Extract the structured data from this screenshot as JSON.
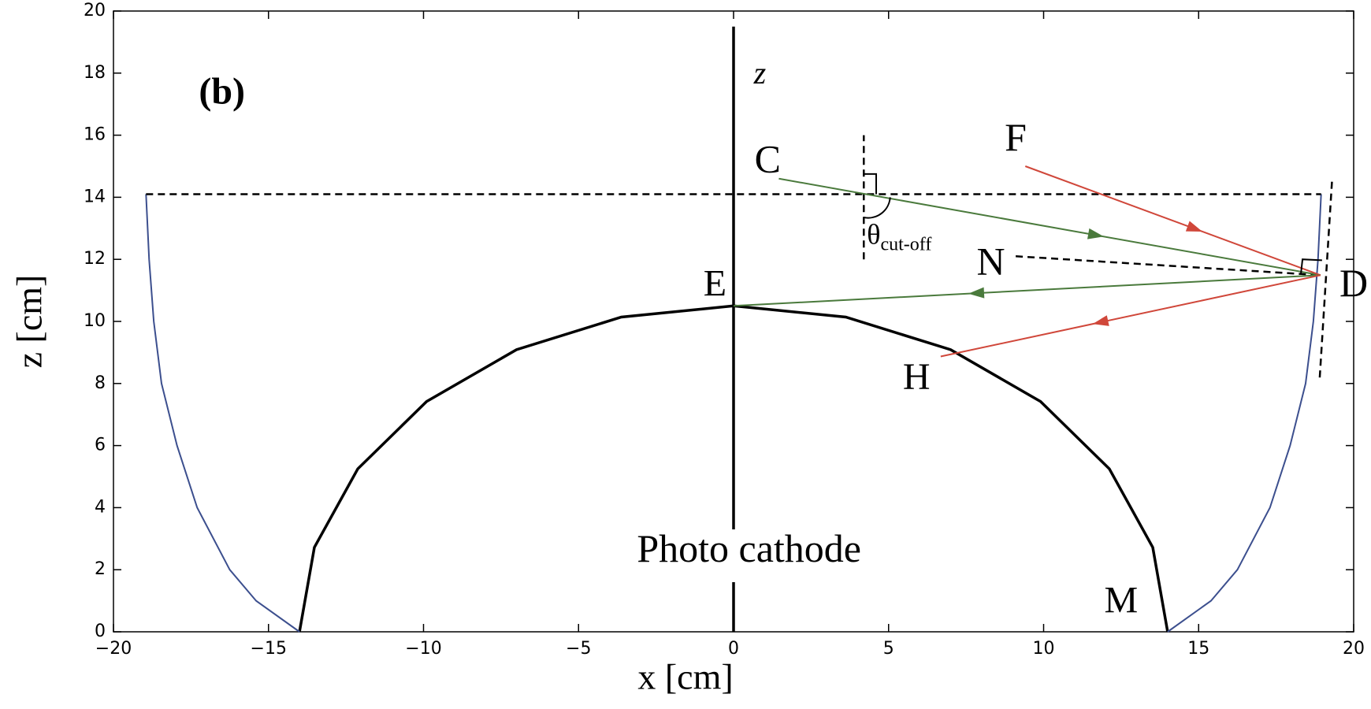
{
  "chart_data": {
    "type": "line",
    "title": "(b)",
    "xlabel": "x [cm]",
    "ylabel": "z [cm]",
    "xlim": [
      -20,
      20
    ],
    "ylim": [
      0,
      20
    ],
    "xticks": [
      {
        "value": -20,
        "label": "−20"
      },
      {
        "value": -15,
        "label": "−15"
      },
      {
        "value": -10,
        "label": "−10"
      },
      {
        "value": -5,
        "label": "−5"
      },
      0,
      5,
      10,
      15,
      20
    ],
    "yticks": [
      0,
      2,
      4,
      6,
      8,
      10,
      12,
      14,
      16,
      18,
      20
    ],
    "grid": false,
    "series": [
      {
        "color": "#000000",
        "dashed": false,
        "x": [
          -14,
          -13.52,
          -12.12,
          -9.9,
          -7,
          -3.62,
          0,
          3.62,
          7,
          9.9,
          12.12,
          13.52,
          14
        ],
        "y": [
          0,
          2.72,
          5.25,
          7.42,
          9.09,
          10.14,
          10.5,
          10.14,
          9.09,
          7.42,
          5.25,
          2.72,
          0
        ]
      },
      {
        "color": "#3c4f8e",
        "dashed": false,
        "x": [
          14,
          15.4,
          16.25,
          17.3,
          17.95,
          18.45,
          18.7,
          18.85,
          18.95
        ],
        "y": [
          0,
          1,
          2,
          4,
          6,
          8,
          10,
          12,
          14.1
        ]
      },
      {
        "color": "#3c4f8e",
        "dashed": false,
        "x": [
          -14,
          -15.4,
          -16.25,
          -17.3,
          -17.95,
          -18.45,
          -18.7,
          -18.85,
          -18.95
        ],
        "y": [
          0,
          1,
          2,
          4,
          6,
          8,
          10,
          12,
          14.1
        ]
      },
      {
        "color": "#000000",
        "dashed": false,
        "x": [
          0,
          0,
          null,
          0,
          0
        ],
        "y": [
          0,
          1.6,
          null,
          3.3,
          19.5
        ]
      },
      {
        "color": "#000000",
        "dashed": true,
        "x": [
          -18.95,
          18.95
        ],
        "y": [
          14.1,
          14.1
        ]
      },
      {
        "color": "#000000",
        "dashed": true,
        "x": [
          4.2,
          4.2
        ],
        "y": [
          12,
          16
        ]
      },
      {
        "color": "#000000",
        "dashed": true,
        "x": [
          9.1,
          18.93
        ],
        "y": [
          12.1,
          11.49
        ]
      },
      {
        "color": "#000000",
        "dashed": true,
        "x": [
          19.3,
          18.9
        ],
        "y": [
          14.5,
          8.1
        ]
      },
      {
        "color": "#4a7a3c",
        "dashed": false,
        "arrow": true,
        "x": [
          1.46,
          18.93
        ],
        "y": [
          14.6,
          11.49
        ]
      },
      {
        "color": "#d0473a",
        "dashed": false,
        "arrow": true,
        "x": [
          9.41,
          18.93
        ],
        "y": [
          15.0,
          11.49
        ]
      },
      {
        "color": "#4a7a3c",
        "dashed": false,
        "arrow": true,
        "x": [
          18.93,
          0
        ],
        "y": [
          11.49,
          10.5
        ]
      },
      {
        "color": "#d0473a",
        "dashed": false,
        "arrow": true,
        "x": [
          18.93,
          6.68
        ],
        "y": [
          11.49,
          8.87
        ]
      }
    ],
    "annotations": [
      {
        "text": "C"
      },
      {
        "text": "F"
      },
      {
        "text": "N"
      },
      {
        "text": "D"
      },
      {
        "text": "E"
      },
      {
        "text": "H"
      },
      {
        "text": "M"
      },
      {
        "text": "z"
      },
      {
        "text": "Photo cathode"
      },
      {
        "text": "θ",
        "subscript": "cut-off"
      }
    ]
  }
}
